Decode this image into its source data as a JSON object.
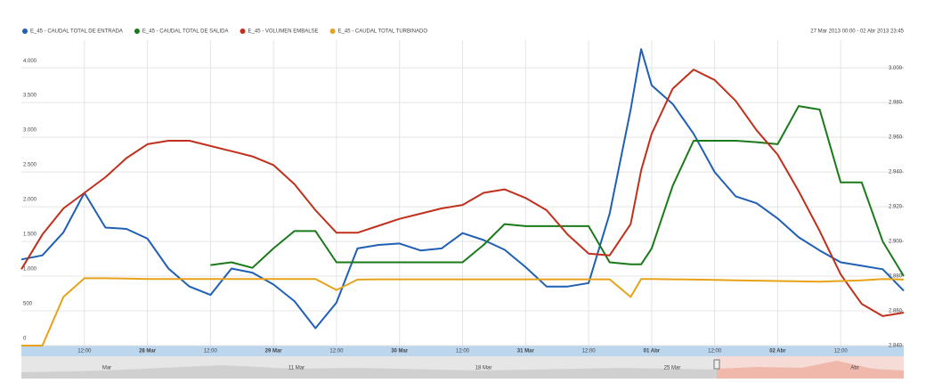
{
  "chart_data": {
    "type": "line",
    "subtitle": "27 Mar 2013 00:00 - 02 Abr 2013 23:45",
    "x": [
      0,
      4,
      8,
      12,
      16,
      20,
      24,
      28,
      32,
      36,
      40,
      44,
      48,
      52,
      56,
      60,
      64,
      68,
      72,
      76,
      80,
      84,
      88,
      92,
      96,
      100,
      104,
      108,
      112,
      116,
      118,
      120,
      124,
      128,
      132,
      136,
      140,
      144,
      148,
      152,
      156,
      160,
      164,
      168
    ],
    "xlim": [
      0,
      168
    ],
    "xticks": [
      {
        "value": 12,
        "label": "12:00"
      },
      {
        "value": 24,
        "label": "28 Mar"
      },
      {
        "value": 36,
        "label": "12:00"
      },
      {
        "value": 48,
        "label": "29 Mar"
      },
      {
        "value": 60,
        "label": "12:00"
      },
      {
        "value": 72,
        "label": "30 Mar"
      },
      {
        "value": 84,
        "label": "12:00"
      },
      {
        "value": 96,
        "label": "31 Mar"
      },
      {
        "value": 108,
        "label": "12:00"
      },
      {
        "value": 120,
        "label": "01 Abr"
      },
      {
        "value": 132,
        "label": "12:00"
      },
      {
        "value": 144,
        "label": "02 Abr"
      },
      {
        "value": 156,
        "label": "12:00"
      }
    ],
    "ylim": [
      0,
      4400
    ],
    "yticks": [
      0,
      500,
      {
        "value": 1000,
        "label": "1.000"
      },
      {
        "value": 1500,
        "label": "1.500"
      },
      {
        "value": 2000,
        "label": "2.000"
      },
      {
        "value": 2500,
        "label": "2.500"
      },
      {
        "value": 3000,
        "label": "3.000"
      },
      {
        "value": 3500,
        "label": "3.500"
      },
      {
        "value": 4000,
        "label": "4.000"
      }
    ],
    "y2lim": [
      2.84,
      3.016
    ],
    "y2ticks": [
      {
        "value": 2.84,
        "label": "2.840"
      },
      {
        "value": 2.86,
        "label": "2.860"
      },
      {
        "value": 2.88,
        "label": "2.880"
      },
      {
        "value": 2.9,
        "label": "2.900"
      },
      {
        "value": 2.92,
        "label": "2.920"
      },
      {
        "value": 2.94,
        "label": "2.940"
      },
      {
        "value": 2.96,
        "label": "2.960"
      },
      {
        "value": 2.98,
        "label": "2.980"
      },
      {
        "value": 3.0,
        "label": "3.000"
      }
    ],
    "grid": true,
    "series": [
      {
        "name": "E_45 - CAUDAL TOTAL DE ENTRADA",
        "color": "#1f5fb4",
        "values": [
          1240,
          1300,
          1630,
          2200,
          1700,
          1680,
          1540,
          1110,
          850,
          730,
          1110,
          1050,
          880,
          640,
          250,
          620,
          1400,
          1450,
          1470,
          1370,
          1400,
          1620,
          1520,
          1380,
          1130,
          850,
          850,
          900,
          1900,
          3400,
          4270,
          3750,
          3480,
          3050,
          2500,
          2150,
          2050,
          1830,
          1560,
          1370,
          1200,
          1150,
          1100,
          790
        ]
      },
      {
        "name": "E_45 - CAUDAL TOTAL DE SALIDA",
        "color": "#1a7a1a",
        "values": [
          null,
          null,
          null,
          null,
          null,
          null,
          null,
          null,
          null,
          1160,
          1200,
          1120,
          1400,
          1650,
          1650,
          1200,
          1200,
          1200,
          1200,
          1200,
          1200,
          1200,
          1450,
          1750,
          1720,
          1720,
          1720,
          1720,
          1200,
          1170,
          1170,
          1400,
          2300,
          2950,
          2950,
          2950,
          2930,
          2900,
          3450,
          3400,
          2350,
          2350,
          1500,
          1000
        ]
      },
      {
        "name": "E_45 - VOLUMEN EMBALSE",
        "color": "#c0301c",
        "axis": "y2",
        "values": [
          2.884,
          2.904,
          2.919,
          2.928,
          2.937,
          2.948,
          2.956,
          2.958,
          2.958,
          2.955,
          2.952,
          2.949,
          2.944,
          2.933,
          2.918,
          2.905,
          2.905,
          2.909,
          2.913,
          2.916,
          2.919,
          2.921,
          2.928,
          2.93,
          2.925,
          2.918,
          2.904,
          2.893,
          2.892,
          2.91,
          2.941,
          2.962,
          2.988,
          2.999,
          2.993,
          2.981,
          2.964,
          2.95,
          2.929,
          2.906,
          2.881,
          2.864,
          2.857,
          2.859
        ]
      },
      {
        "name": "E_45 - CAUDAL TOTAL TURBINADO",
        "color": "#e8a21a",
        "values": [
          0,
          0,
          700,
          970,
          970,
          965,
          960,
          960,
          960,
          960,
          960,
          960,
          960,
          960,
          960,
          800,
          950,
          955,
          955,
          955,
          955,
          955,
          955,
          955,
          955,
          955,
          955,
          955,
          955,
          700,
          960,
          960,
          955,
          950,
          945,
          940,
          935,
          930,
          925,
          920,
          930,
          940,
          960,
          950
        ]
      }
    ]
  },
  "navigator": {
    "labels": [
      "Mar",
      "11 Mar",
      "18 Mar",
      "25 Mar",
      "Abr"
    ]
  }
}
